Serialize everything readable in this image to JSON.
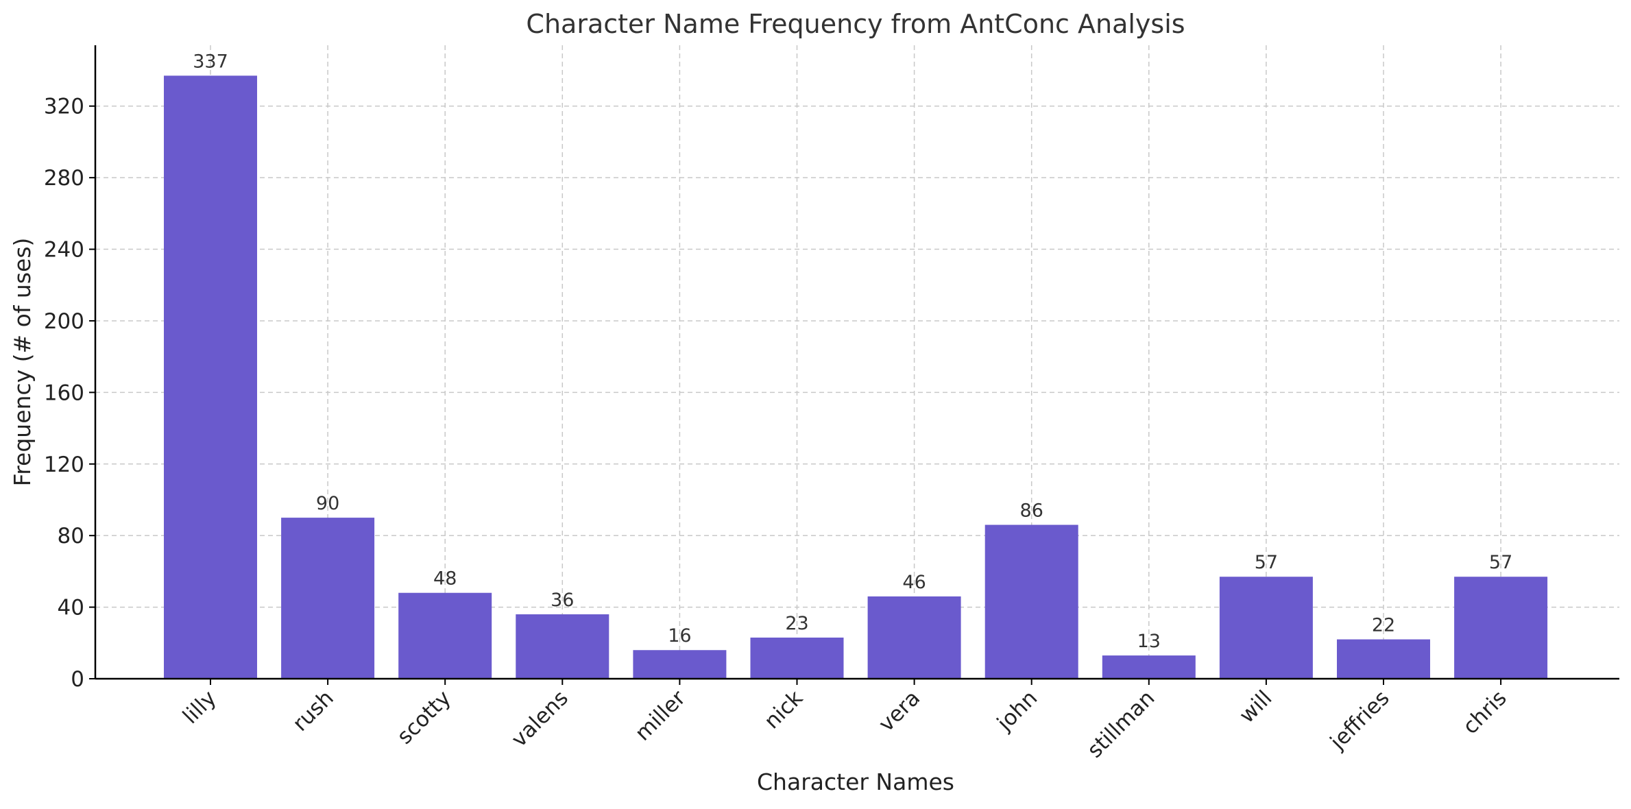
{
  "chart_data": {
    "type": "bar",
    "title": "Character Name Frequency from AntConc Analysis",
    "xlabel": "Character Names",
    "ylabel": "Frequency (# of uses)",
    "categories": [
      "lilly",
      "rush",
      "scotty",
      "valens",
      "miller",
      "nick",
      "vera",
      "john",
      "stillman",
      "will",
      "jeffries",
      "chris"
    ],
    "values": [
      337,
      90,
      48,
      36,
      16,
      23,
      46,
      86,
      13,
      57,
      22,
      57
    ],
    "ylim": [
      0,
      354
    ],
    "yticks": [
      0,
      40,
      80,
      120,
      160,
      200,
      240,
      280,
      320
    ],
    "grid": true,
    "bar_color": "#6a5acd"
  }
}
